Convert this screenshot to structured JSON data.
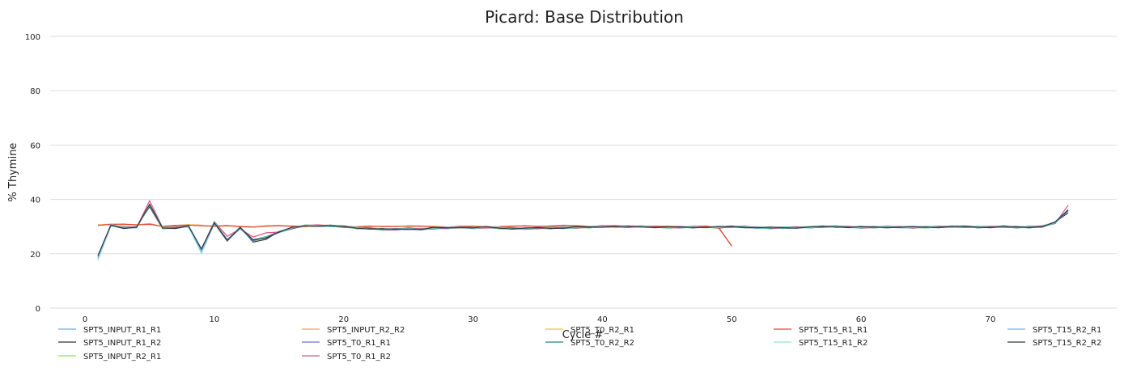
{
  "chart_data": {
    "type": "line",
    "title": "Picard: Base Distribution",
    "xlabel": "Cycle #",
    "ylabel": "% Thymine",
    "xlim": [
      -2,
      79
    ],
    "ylim": [
      0,
      100
    ],
    "xticks": [
      0,
      10,
      20,
      30,
      40,
      50,
      60,
      70
    ],
    "yticks": [
      0,
      20,
      40,
      60,
      80,
      100
    ],
    "grid": "horizontal",
    "legend_position": "bottom",
    "cycles": 76,
    "series": [
      {
        "name": "SPT5_INPUT_R1_R1",
        "color": "#6fa8dc",
        "family": "pe",
        "jitter": 0.3,
        "phase": 0.0,
        "scale": 1.0
      },
      {
        "name": "SPT5_INPUT_R1_R2",
        "color": "#333333",
        "family": "pe",
        "jitter": 0.25,
        "phase": 0.7,
        "scale": 0.98
      },
      {
        "name": "SPT5_INPUT_R2_R1",
        "color": "#8ee06b",
        "family": "pe",
        "jitter": 0.35,
        "phase": 1.4,
        "scale": 1.0
      },
      {
        "name": "SPT5_INPUT_R2_R2",
        "color": "#f0a05a",
        "family": "se",
        "jitter": 0.2,
        "phase": 0.3,
        "scale": 1.0
      },
      {
        "name": "SPT5_T0_R1_R1",
        "color": "#6b72d8",
        "family": "pe",
        "jitter": 0.3,
        "phase": 2.1,
        "scale": 1.0
      },
      {
        "name": "SPT5_T0_R1_R2",
        "color": "#e0557a",
        "family": "pe",
        "jitter": 0.4,
        "phase": 2.8,
        "scale": 1.05
      },
      {
        "name": "SPT5_T0_R2_R1",
        "color": "#e8c545",
        "family": "se",
        "jitter": 0.25,
        "phase": 1.1,
        "scale": 1.0
      },
      {
        "name": "SPT5_T0_R2_R2",
        "color": "#1f8a70",
        "family": "pe",
        "jitter": 0.35,
        "phase": 3.5,
        "scale": 1.0
      },
      {
        "name": "SPT5_T15_R1_R1",
        "color": "#e04545",
        "family": "se",
        "jitter": 0.2,
        "phase": 1.9,
        "scale": 1.0
      },
      {
        "name": "SPT5_T15_R1_R2",
        "color": "#8ee8d8",
        "family": "pe",
        "jitter": 0.3,
        "phase": 4.2,
        "scale": 1.0
      },
      {
        "name": "SPT5_T15_R2_R1",
        "color": "#7fa8e8",
        "family": "pe",
        "jitter": 0.25,
        "phase": 4.9,
        "scale": 1.0
      },
      {
        "name": "SPT5_T15_R2_R2",
        "color": "#2f3b45",
        "family": "pe",
        "jitter": 0.2,
        "phase": 5.6,
        "scale": 1.0
      }
    ],
    "base_profiles": {
      "pe": [
        18.5,
        30.5,
        29.5,
        29.8,
        38.0,
        29.5,
        29.5,
        30.2,
        21.0,
        31.5,
        25.0,
        29.5,
        25.0,
        26.0,
        28.0,
        29.5,
        30.3,
        30.3,
        30.3,
        30.0,
        29.5,
        29.3,
        29.0,
        29.0,
        29.2,
        29.0,
        29.5,
        29.5,
        29.8,
        29.5,
        29.8,
        29.5,
        29.3,
        29.3,
        29.5,
        29.5,
        29.5,
        29.8,
        29.8,
        30.0,
        30.0,
        30.0,
        30.0,
        29.8,
        29.8,
        29.8,
        29.8,
        29.8,
        29.8,
        30.0,
        29.8,
        29.6,
        29.6,
        29.6,
        29.6,
        29.8,
        30.0,
        30.0,
        29.8,
        29.8,
        29.8,
        29.8,
        29.8,
        29.8,
        29.8,
        29.8,
        30.0,
        30.0,
        29.8,
        29.8,
        30.0,
        29.8,
        29.8,
        30.0,
        31.5,
        36.0
      ],
      "se": [
        30.5,
        31.0,
        30.8,
        30.5,
        31.0,
        30.2,
        30.3,
        30.5,
        30.5,
        30.2,
        30.2,
        30.0,
        30.0,
        30.2,
        30.2,
        30.2,
        30.2,
        30.2,
        30.2,
        30.2,
        30.0,
        30.0,
        30.0,
        30.2,
        30.2,
        30.0,
        30.0,
        30.0,
        30.0,
        30.0,
        30.0,
        30.0,
        30.0,
        30.2,
        30.2,
        30.2,
        30.3,
        30.3,
        30.2,
        30.2,
        30.2,
        30.0,
        30.0,
        30.0,
        30.0,
        30.0,
        30.0,
        30.0,
        29.5,
        23.0
      ]
    }
  }
}
